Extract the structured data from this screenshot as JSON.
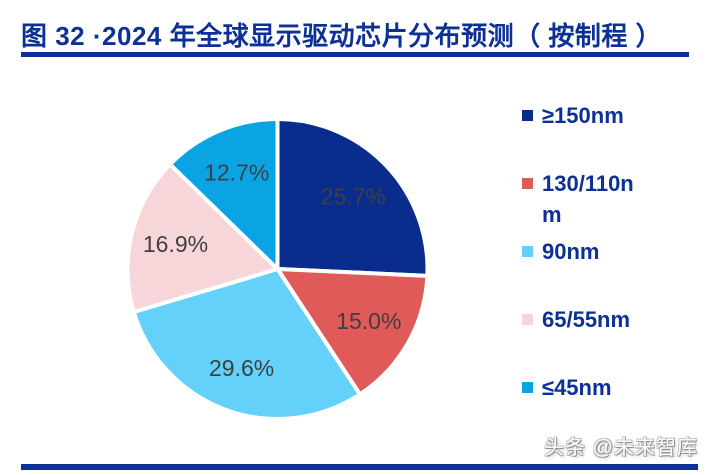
{
  "header": {
    "title": "图 32 ·2024 年全球显示驱动芯片分布预测（ 按制程 ）"
  },
  "watermark": {
    "text": "头条 @未来智库"
  },
  "theme": {
    "navy_accent": "#0C3095",
    "slice_label_color": "#3F3F3F",
    "slice_border_color": "#FFFFFF",
    "background": "#FFFFFF"
  },
  "chart_data": {
    "type": "pie",
    "title": "2024 年全球显示驱动芯片分布预测（按制程）",
    "categories": [
      "≥150nm",
      "130/110nm",
      "90nm",
      "65/55nm",
      "≤45nm"
    ],
    "values": [
      25.7,
      15.0,
      29.6,
      16.9,
      12.7
    ],
    "labels": [
      "25.7%",
      "15.0%",
      "29.6%",
      "16.9%",
      "12.7%"
    ],
    "colors": [
      "#0A2C8C",
      "#E05A5A",
      "#63D1FA",
      "#F7D6D9",
      "#0AA4E4"
    ],
    "unit": "%",
    "start_angle_deg": -90,
    "direction": "clockwise",
    "legend_position": "right",
    "data_labels": "inside"
  }
}
